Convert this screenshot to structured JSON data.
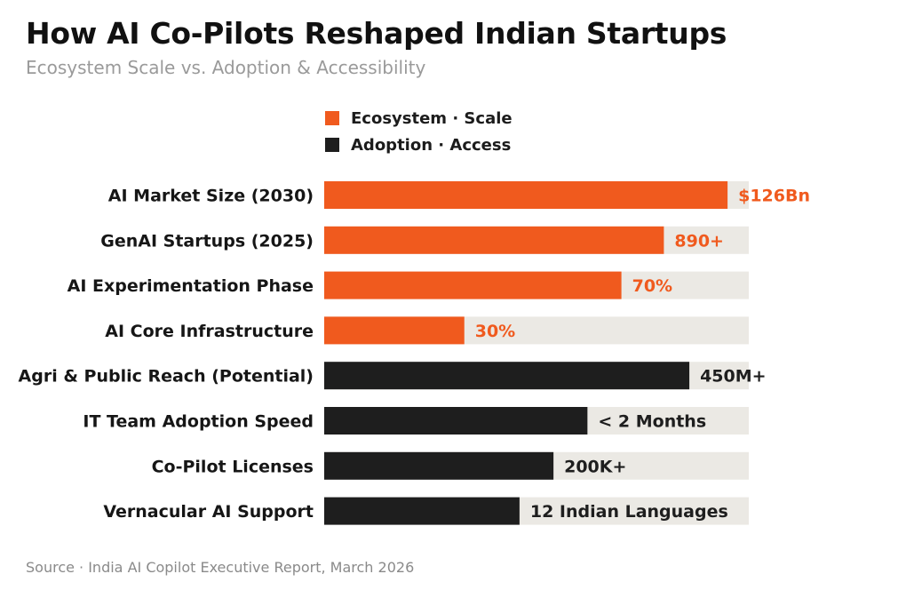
{
  "header": {
    "title": "How AI Co-Pilots Reshaped Indian Startups",
    "subtitle": "Ecosystem Scale vs. Adoption & Accessibility"
  },
  "legend": [
    {
      "label": "Ecosystem · Scale",
      "color": "#f05a1e"
    },
    {
      "label": "Adoption · Access",
      "color": "#1e1e1e"
    }
  ],
  "chart_data": {
    "type": "bar",
    "orientation": "horizontal",
    "track_color": "#ebe9e4",
    "categories": [
      "AI Market Size (2030)",
      "GenAI Startups (2025)",
      "AI Experimentation Phase",
      "AI Core Infrastructure",
      "Agri & Public Reach (Potential)",
      "IT Team Adoption Speed",
      "Co-Pilot Licenses",
      "Vernacular AI Support"
    ],
    "bars": [
      {
        "category": "AI Market Size (2030)",
        "value": 95,
        "label": "$126Bn",
        "group": "Ecosystem · Scale"
      },
      {
        "category": "GenAI Startups (2025)",
        "value": 80,
        "label": "890+",
        "group": "Ecosystem · Scale"
      },
      {
        "category": "AI Experimentation Phase",
        "value": 70,
        "label": "70%",
        "group": "Ecosystem · Scale"
      },
      {
        "category": "AI Core Infrastructure",
        "value": 33,
        "label": "30%",
        "group": "Ecosystem · Scale"
      },
      {
        "category": "Agri & Public Reach (Potential)",
        "value": 86,
        "label": "450M+",
        "group": "Adoption · Access"
      },
      {
        "category": "IT Team Adoption Speed",
        "value": 62,
        "label": "< 2 Months",
        "group": "Adoption · Access"
      },
      {
        "category": "Co-Pilot Licenses",
        "value": 54,
        "label": "200K+",
        "group": "Adoption · Access"
      },
      {
        "category": "Vernacular AI Support",
        "value": 46,
        "label": "12 Indian Languages",
        "group": "Adoption · Access"
      }
    ],
    "xlim": [
      0,
      100
    ],
    "grid": false,
    "legend_position": "top"
  },
  "footer": {
    "source": "Source · India AI Copilot Executive Report, March 2026"
  }
}
